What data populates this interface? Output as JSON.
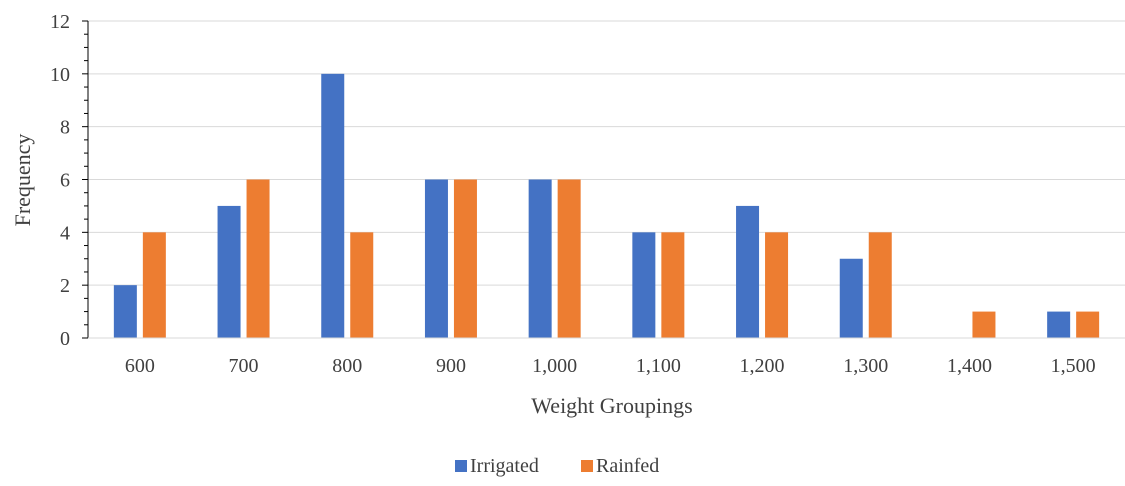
{
  "chart_data": {
    "type": "bar",
    "title": "",
    "xlabel": "Weight Groupings",
    "ylabel": "Frequency",
    "ylim": [
      0,
      12
    ],
    "yticks": [
      "0",
      "2",
      "4",
      "6",
      "8",
      "10",
      "12"
    ],
    "categories": [
      "600",
      "700",
      "800",
      "900",
      "1,000",
      "1,100",
      "1,200",
      "1,300",
      "1,400",
      "1,500"
    ],
    "series": [
      {
        "name": "Irrigated",
        "color": "#4472c4",
        "values": [
          2,
          5,
          10,
          6,
          6,
          4,
          5,
          3,
          0,
          1
        ]
      },
      {
        "name": "Rainfed",
        "color": "#ed7d31",
        "values": [
          4,
          6,
          4,
          6,
          6,
          4,
          4,
          4,
          1,
          1
        ]
      }
    ],
    "grid": true,
    "legend_position": "bottom"
  }
}
